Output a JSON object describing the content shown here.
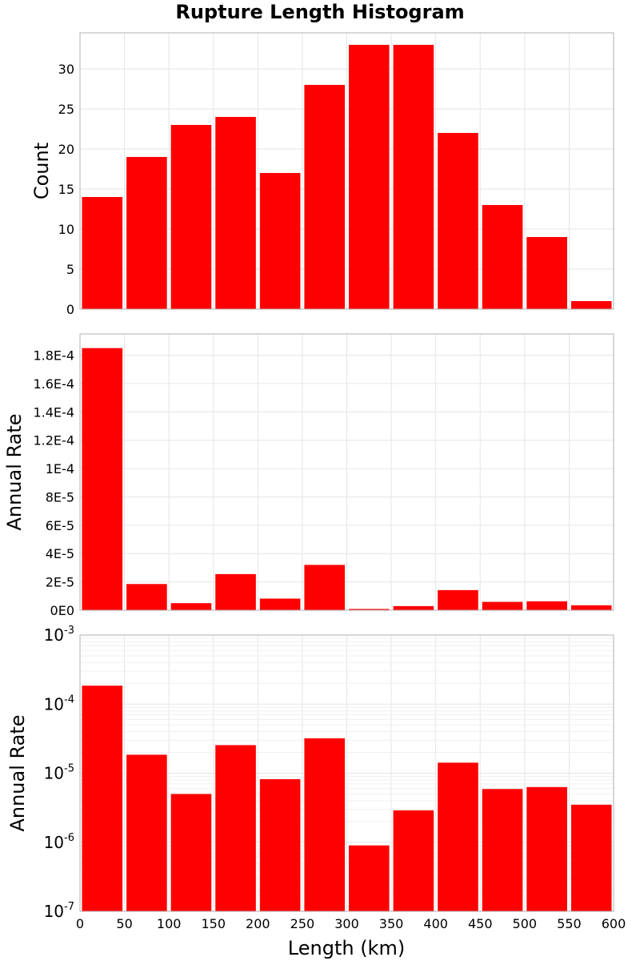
{
  "chart_data": [
    {
      "type": "bar",
      "title": "Rupture Length Histogram",
      "ylabel": "Count",
      "xlim": [
        0,
        600
      ],
      "ylim": [
        0,
        34.5
      ],
      "y_ticks": [
        "0",
        "5",
        "10",
        "15",
        "20",
        "25",
        "30"
      ],
      "y_tick_values": [
        0,
        5,
        10,
        15,
        20,
        25,
        30
      ],
      "bin_width": 50,
      "x": [
        25,
        75,
        125,
        175,
        225,
        275,
        325,
        375,
        425,
        475,
        525,
        575
      ],
      "values": [
        14,
        19,
        23,
        24,
        17,
        28,
        33,
        33,
        22,
        13,
        9,
        1
      ],
      "bar_color": "#ff0000",
      "grid": true
    },
    {
      "type": "bar",
      "ylabel": "Annual Rate",
      "xlim": [
        0,
        600
      ],
      "ylim": [
        0,
        0.000195
      ],
      "y_ticks": [
        "0E0",
        "2E-5",
        "4E-5",
        "6E-5",
        "8E-5",
        "1E-4",
        "1.2E-4",
        "1.4E-4",
        "1.6E-4",
        "1.8E-4"
      ],
      "y_tick_values": [
        0,
        2e-05,
        4e-05,
        6e-05,
        8e-05,
        0.0001,
        0.00012,
        0.00014,
        0.00016,
        0.00018
      ],
      "bin_width": 50,
      "x": [
        25,
        75,
        125,
        175,
        225,
        275,
        325,
        375,
        425,
        475,
        525,
        575
      ],
      "values": [
        0.000185,
        1.85e-05,
        5e-06,
        2.55e-05,
        8.2e-06,
        3.2e-05,
        9e-07,
        2.9e-06,
        1.42e-05,
        5.9e-06,
        6.3e-06,
        3.5e-06
      ],
      "bar_color": "#ff0000",
      "grid": true
    },
    {
      "type": "bar",
      "ylabel": "Annual Rate",
      "xlabel": "Length (km)",
      "log_y": true,
      "xlim": [
        0,
        600
      ],
      "ylim": [
        1e-07,
        0.001
      ],
      "x_ticks": [
        "0",
        "50",
        "100",
        "150",
        "200",
        "250",
        "300",
        "350",
        "400",
        "450",
        "500",
        "550",
        "600"
      ],
      "y_ticks": [
        {
          "base": "10",
          "exp": "-7",
          "value": 1e-07
        },
        {
          "base": "10",
          "exp": "-6",
          "value": 1e-06
        },
        {
          "base": "10",
          "exp": "-5",
          "value": 1e-05
        },
        {
          "base": "10",
          "exp": "-4",
          "value": 0.0001
        },
        {
          "base": "10",
          "exp": "-3",
          "value": 0.001
        }
      ],
      "bin_width": 50,
      "x": [
        25,
        75,
        125,
        175,
        225,
        275,
        325,
        375,
        425,
        475,
        525,
        575
      ],
      "values": [
        0.000185,
        1.85e-05,
        5e-06,
        2.55e-05,
        8.2e-06,
        3.2e-05,
        9e-07,
        2.9e-06,
        1.42e-05,
        5.9e-06,
        6.3e-06,
        3.5e-06
      ],
      "bar_color": "#ff0000",
      "grid": true
    }
  ]
}
